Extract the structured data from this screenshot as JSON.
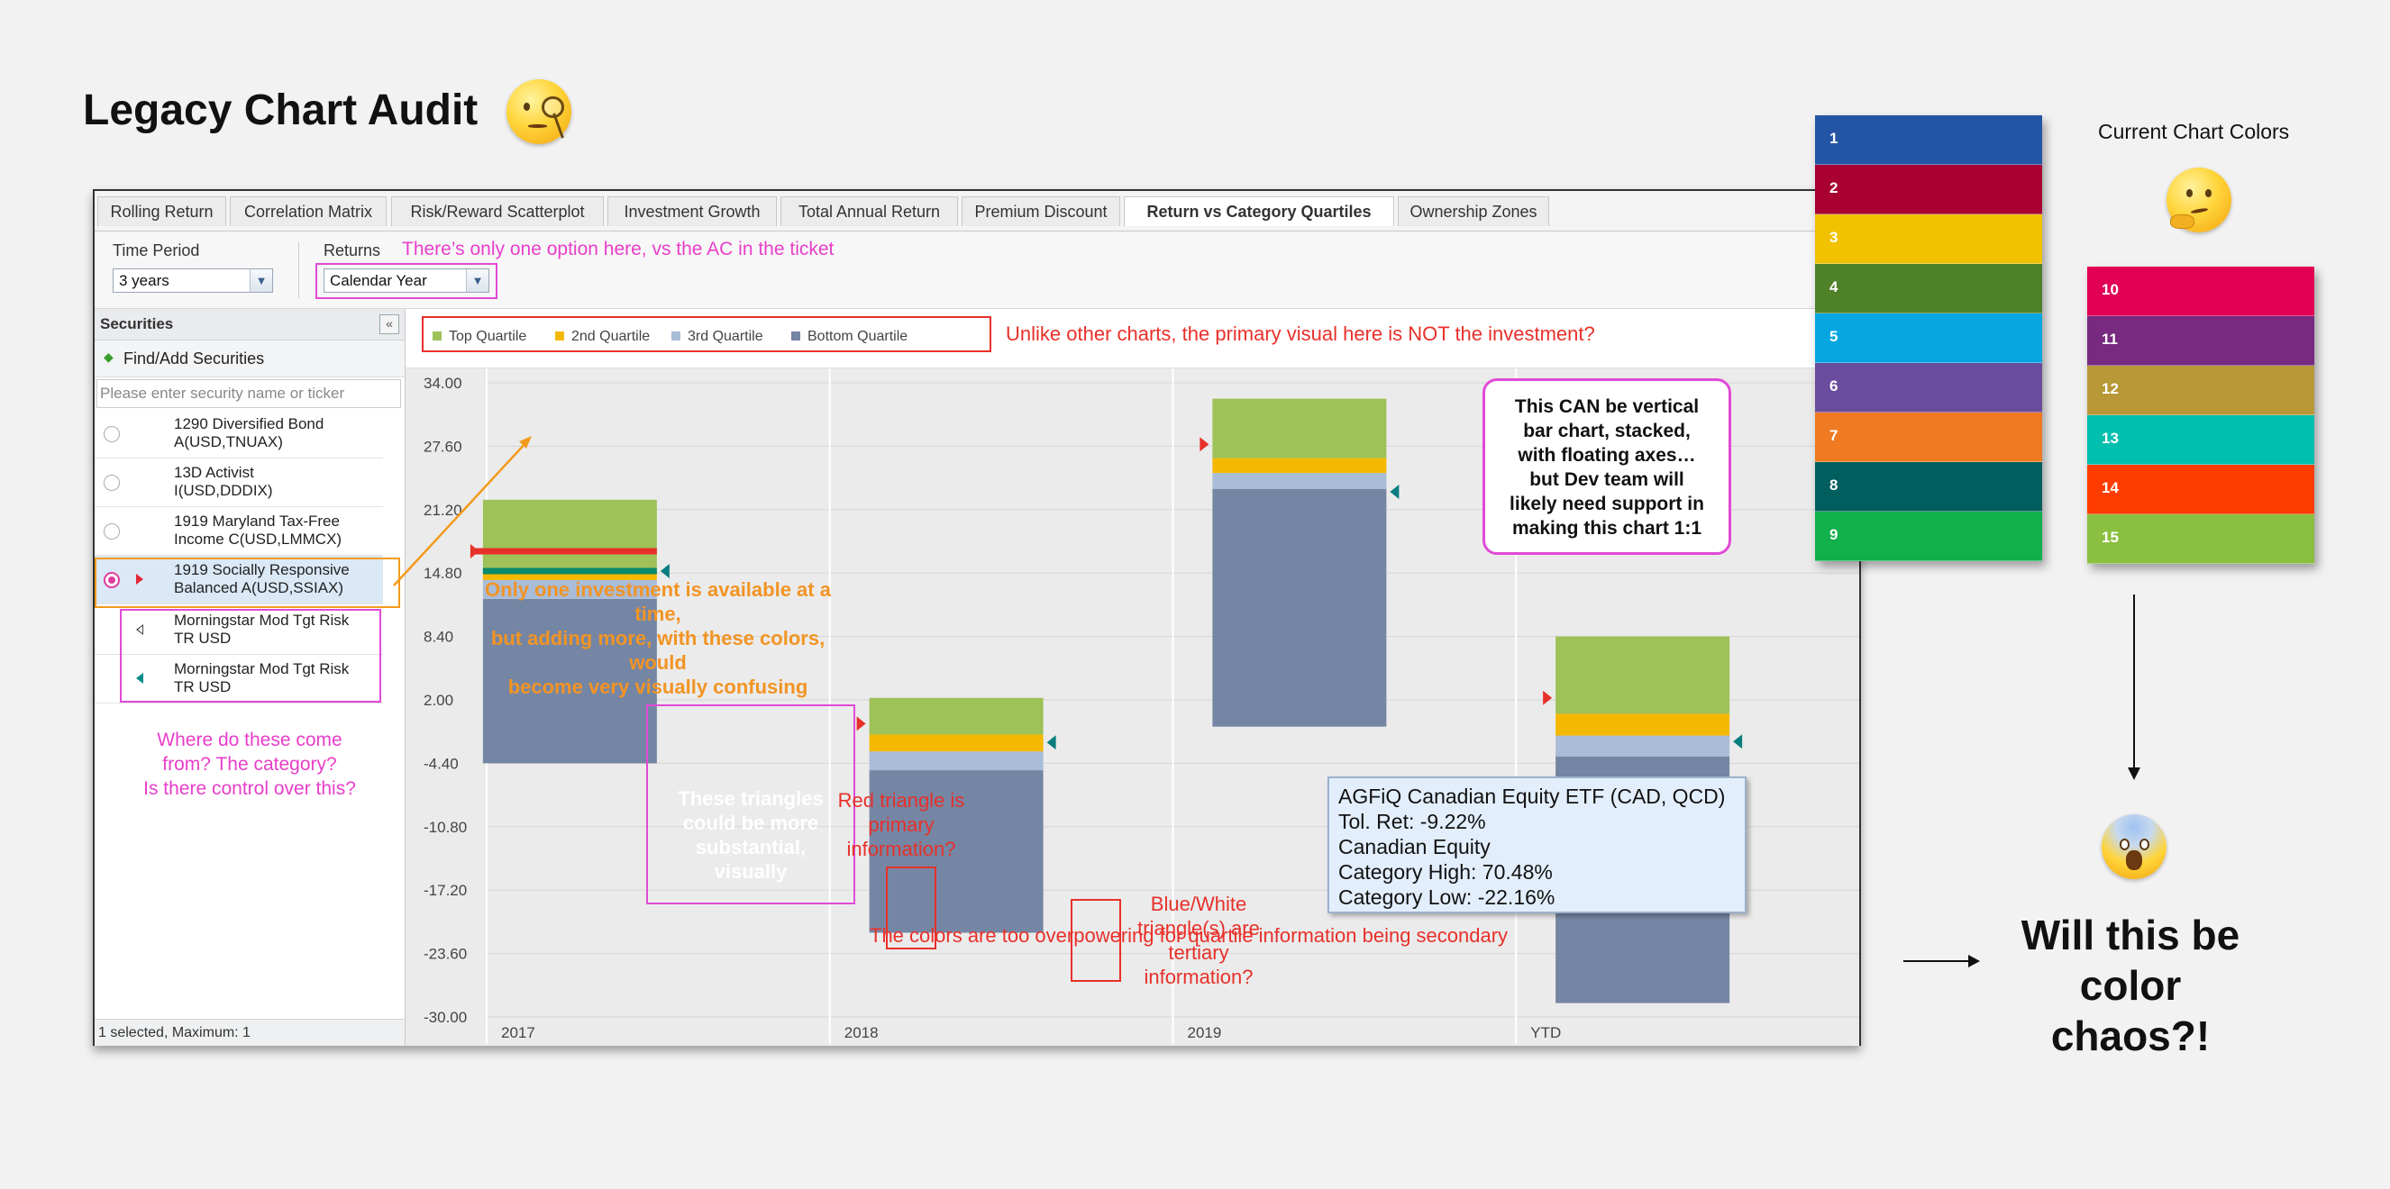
{
  "page": {
    "title": "Legacy Chart Audit"
  },
  "tabs": [
    {
      "label": "Rolling Return"
    },
    {
      "label": "Correlation Matrix"
    },
    {
      "label": "Risk/Reward Scatterplot"
    },
    {
      "label": "Investment Growth"
    },
    {
      "label": "Total Annual Return"
    },
    {
      "label": "Premium Discount"
    },
    {
      "label": "Return vs Category Quartiles",
      "active": true
    },
    {
      "label": "Ownership Zones"
    }
  ],
  "controls": {
    "time_period_label": "Time Period",
    "time_period_value": "3 years",
    "returns_label": "Returns",
    "returns_value": "Calendar Year"
  },
  "sidebar": {
    "title": "Securities",
    "collapse_icon": "«",
    "find_add_label": "Find/Add Securities",
    "search_placeholder": "Please enter security name or ticker",
    "securities": [
      {
        "line1": "1290 Diversified Bond",
        "line2": "A(USD,TNUAX)",
        "selected": false
      },
      {
        "line1": "13D Activist",
        "line2": "I(USD,DDDIX)",
        "selected": false
      },
      {
        "line1": "1919 Maryland Tax-Free",
        "line2": "Income C(USD,LMMCX)",
        "selected": false
      },
      {
        "line1": "1919 Socially Responsive",
        "line2": "Balanced A(USD,SSIAX)",
        "selected": true
      }
    ],
    "benchmarks": [
      {
        "line1": "Morningstar Mod Tgt Risk",
        "line2": "TR USD",
        "marker": "white-triangle"
      },
      {
        "line1": "Morningstar Mod Tgt Risk",
        "line2": "TR USD",
        "marker": "teal-triangle"
      }
    ],
    "footer": "1 selected, Maximum: 1"
  },
  "legend": [
    {
      "label": "Top Quartile",
      "color": "#9ec158"
    },
    {
      "label": "2nd Quartile",
      "color": "#f5b800"
    },
    {
      "label": "3rd Quartile",
      "color": "#a9bcd8"
    },
    {
      "label": "Bottom Quartile",
      "color": "#7586a4"
    }
  ],
  "chart_data": {
    "type": "bar",
    "stacked": true,
    "floating": true,
    "categories": [
      "2017",
      "2018",
      "2019",
      "YTD"
    ],
    "y_ticks": [
      "34.00",
      "27.60",
      "21.20",
      "14.80",
      "8.40",
      "2.00",
      "-4.40",
      "-10.80",
      "-17.20",
      "-23.60",
      "-30.00"
    ],
    "ylim": [
      -30.0,
      34.0
    ],
    "grid": true,
    "series": [
      {
        "name": "Bottom Quartile",
        "ranges": [
          [
            -4.4,
            12.2
          ],
          [
            -21.5,
            -5.1
          ],
          [
            -0.7,
            23.3
          ],
          [
            -28.6,
            -3.7
          ]
        ],
        "color": "#7586a4"
      },
      {
        "name": "3rd Quartile",
        "ranges": [
          [
            12.2,
            14.1
          ],
          [
            -5.1,
            -3.2
          ],
          [
            23.3,
            24.9
          ],
          [
            -3.7,
            -1.6
          ]
        ],
        "color": "#a9bcd8"
      },
      {
        "name": "2nd Quartile",
        "ranges": [
          [
            14.1,
            15.0
          ],
          [
            -3.2,
            -1.5
          ],
          [
            24.9,
            26.4
          ],
          [
            -1.6,
            0.6
          ]
        ],
        "color": "#f5b800"
      },
      {
        "name": "Top Quartile",
        "ranges": [
          [
            15.0,
            22.2
          ],
          [
            -1.5,
            2.2
          ],
          [
            26.4,
            32.4
          ],
          [
            0.6,
            8.4
          ]
        ],
        "color": "#9ec158"
      }
    ],
    "markers": [
      {
        "category": "2017",
        "investment": 17.0,
        "benchmark": 15.0
      },
      {
        "category": "2018",
        "investment": -0.4,
        "benchmark": -2.3
      },
      {
        "category": "2019",
        "investment": 27.8,
        "benchmark": 23.0
      },
      {
        "category": "YTD",
        "investment": 2.2,
        "benchmark": -2.2
      }
    ]
  },
  "annotations": {
    "returns_note": "There’s only one option here, vs the AC in the ticket",
    "legend_note": "Unlike other charts, the primary visual here is NOT the investment?",
    "investment_note_1": "Only one investment is available at a time,",
    "investment_note_2": "but adding more, with these colors, would",
    "investment_note_3": "become very visually confusing",
    "triangles_note_1": "These triangles",
    "triangles_note_2": "could be more",
    "triangles_note_3": "substantial,",
    "triangles_note_4": "visually",
    "red_tri_note_1": "Red triangle is",
    "red_tri_note_2": "primary",
    "red_tri_note_3": "information?",
    "blue_tri_note_1": "Blue/White",
    "blue_tri_note_2": "triangle(s) are",
    "blue_tri_note_3": "tertiary",
    "blue_tri_note_4": "information?",
    "category_note_1": "Where do these come",
    "category_note_2": "from? The category?",
    "category_note_3": "Is there control over this?",
    "colors_note": "The colors are too overpowering for quartile information being secondary",
    "callout_1": "This CAN be vertical",
    "callout_2": "bar chart, stacked,",
    "callout_3": "with floating axes…",
    "callout_4": "but Dev team will",
    "callout_5": "likely need support in",
    "callout_6": "making this chart 1:1"
  },
  "tooltip": {
    "line1": "AGFiQ Canadian Equity ETF (CAD, QCD)",
    "line2": "Tol. Ret: -9.22%",
    "line3": "Canadian Equity",
    "line4": "Category High: 70.48%",
    "line5": "Category Low: -22.16%"
  },
  "palette": {
    "label": "Current Chart Colors",
    "column1": [
      {
        "n": "1",
        "color": "#2455a4"
      },
      {
        "n": "2",
        "color": "#a80032"
      },
      {
        "n": "3",
        "color": "#f2c200"
      },
      {
        "n": "4",
        "color": "#4f8128"
      },
      {
        "n": "5",
        "color": "#06a6e0"
      },
      {
        "n": "6",
        "color": "#6a4c9c"
      },
      {
        "n": "7",
        "color": "#ef7a22"
      },
      {
        "n": "8",
        "color": "#005f5e"
      },
      {
        "n": "9",
        "color": "#10b04a"
      }
    ],
    "column2": [
      {
        "n": "10",
        "color": "#e10054"
      },
      {
        "n": "11",
        "color": "#772a80"
      },
      {
        "n": "12",
        "color": "#b89837"
      },
      {
        "n": "13",
        "color": "#00bfae"
      },
      {
        "n": "14",
        "color": "#ff3c00"
      },
      {
        "n": "15",
        "color": "#8bbf40"
      }
    ]
  },
  "conclusion": {
    "line1": "Will this be",
    "line2": "color chaos?!"
  }
}
